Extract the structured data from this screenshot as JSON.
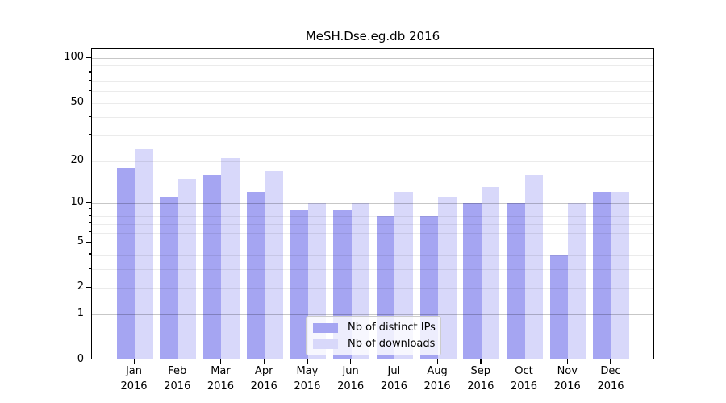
{
  "title": "MeSH.Dse.eg.db 2016",
  "chart_data": {
    "type": "bar",
    "title": "MeSH.Dse.eg.db 2016",
    "xlabel": "",
    "ylabel": "",
    "scale": "log1p",
    "ylim": [
      0,
      100
    ],
    "yticks": [
      100,
      50,
      20,
      10,
      5,
      2,
      1,
      0
    ],
    "yticks_minor": [
      2,
      3,
      4,
      5,
      6,
      7,
      8,
      9,
      20,
      30,
      40,
      50,
      60,
      70,
      80,
      90
    ],
    "grid": true,
    "legend_position": "lower center",
    "categories": [
      "Jan",
      "Feb",
      "Mar",
      "Apr",
      "May",
      "Jun",
      "Jul",
      "Aug",
      "Sep",
      "Oct",
      "Nov",
      "Dec"
    ],
    "category_year": "2016",
    "series": [
      {
        "name": "Nb of distinct IPs",
        "color": "#a5a5f2",
        "values": [
          18,
          11,
          16,
          12,
          9,
          9,
          8,
          8,
          10,
          10,
          4,
          12
        ]
      },
      {
        "name": "Nb of downloads",
        "color": "#d8d8fa",
        "values": [
          24,
          15,
          21,
          17,
          10,
          10,
          12,
          11,
          13,
          16,
          10,
          12
        ]
      }
    ]
  }
}
